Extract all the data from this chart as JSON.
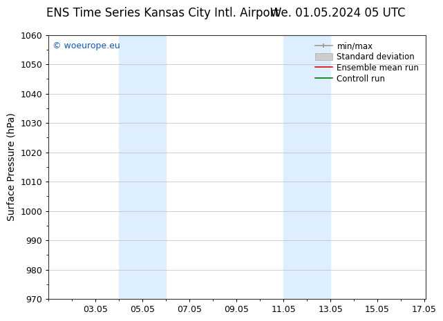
{
  "title_left": "ENS Time Series Kansas City Intl. Airport",
  "title_right": "We. 01.05.2024 05 UTC",
  "ylabel": "Surface Pressure (hPa)",
  "ylim": [
    970,
    1060
  ],
  "yticks": [
    970,
    980,
    990,
    1000,
    1010,
    1020,
    1030,
    1040,
    1050,
    1060
  ],
  "xlim": [
    1.0,
    17.05
  ],
  "xtick_labels": [
    "03.05",
    "05.05",
    "07.05",
    "09.05",
    "11.05",
    "13.05",
    "15.05",
    "17.05"
  ],
  "xtick_positions": [
    3.0,
    5.0,
    7.0,
    9.0,
    11.0,
    13.0,
    15.0,
    17.0
  ],
  "watermark": "© woeurope.eu",
  "watermark_color": "#1155bb",
  "shaded_regions": [
    {
      "x_start": 4.0,
      "x_end": 5.0,
      "color": "#ddeeff"
    },
    {
      "x_start": 5.0,
      "x_end": 6.0,
      "color": "#ddeeff"
    },
    {
      "x_start": 11.0,
      "x_end": 12.0,
      "color": "#ddeeff"
    },
    {
      "x_start": 12.0,
      "x_end": 13.0,
      "color": "#ddeeff"
    }
  ],
  "legend_entries": [
    {
      "label": "min/max",
      "color": "#999999",
      "lw": 1.2,
      "style": "solid"
    },
    {
      "label": "Standard deviation",
      "color": "#cccccc",
      "lw": 8,
      "style": "solid"
    },
    {
      "label": "Ensemble mean run",
      "color": "#dd0000",
      "lw": 1.2,
      "style": "solid"
    },
    {
      "label": "Controll run",
      "color": "#007700",
      "lw": 1.2,
      "style": "solid"
    }
  ],
  "background_color": "#ffffff",
  "plot_bg_color": "#ffffff",
  "grid_color": "#bbbbbb",
  "title_fontsize": 12,
  "tick_fontsize": 9,
  "legend_fontsize": 8.5,
  "ylabel_fontsize": 10
}
